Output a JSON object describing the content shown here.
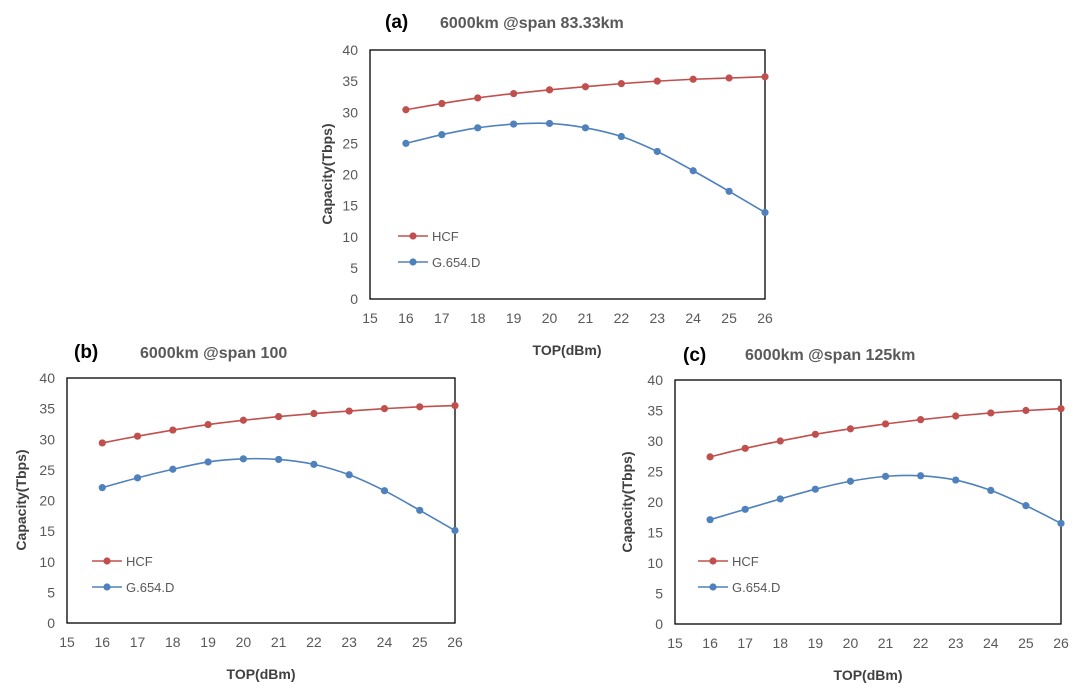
{
  "colors": {
    "hcf": "#C0504D",
    "g654": "#4F81BD",
    "frame": "#000000",
    "text": "#595959"
  },
  "chart_data": [
    {
      "type": "line",
      "panel_label": "(a)",
      "title": "6000km @span 83.33km",
      "xlabel": "TOP(dBm)",
      "ylabel": "Capacity(Tbps)",
      "xlim": [
        15,
        26
      ],
      "ylim": [
        0,
        40
      ],
      "x_ticks": [
        "15",
        "16",
        "17",
        "18",
        "19",
        "20",
        "21",
        "22",
        "23",
        "24",
        "25",
        "26"
      ],
      "y_ticks": [
        "0",
        "5",
        "10",
        "15",
        "20",
        "25",
        "30",
        "35",
        "40"
      ],
      "grid": false,
      "legend_position": "left-middle",
      "x": [
        16,
        17,
        18,
        19,
        20,
        21,
        22,
        23,
        24,
        25,
        26
      ],
      "series": [
        {
          "name": "HCF",
          "color": "#C0504D",
          "values": [
            30.4,
            31.4,
            32.3,
            33.0,
            33.6,
            34.1,
            34.6,
            35.0,
            35.3,
            35.5,
            35.7
          ]
        },
        {
          "name": "G.654.D",
          "color": "#4F81BD",
          "values": [
            25.0,
            26.4,
            27.5,
            28.1,
            28.2,
            27.5,
            26.1,
            23.7,
            20.6,
            17.3,
            13.9
          ]
        }
      ]
    },
    {
      "type": "line",
      "panel_label": "(b)",
      "title": "6000km @span 100",
      "xlabel": "TOP(dBm)",
      "ylabel": "Capacity(Tbps)",
      "xlim": [
        15,
        26
      ],
      "ylim": [
        0,
        40
      ],
      "x_ticks": [
        "15",
        "16",
        "17",
        "18",
        "19",
        "20",
        "21",
        "22",
        "23",
        "24",
        "25",
        "26"
      ],
      "y_ticks": [
        "0",
        "5",
        "10",
        "15",
        "20",
        "25",
        "30",
        "35",
        "40"
      ],
      "grid": false,
      "legend_position": "left-middle",
      "x": [
        16,
        17,
        18,
        19,
        20,
        21,
        22,
        23,
        24,
        25,
        26
      ],
      "series": [
        {
          "name": "HCF",
          "color": "#C0504D",
          "values": [
            29.4,
            30.5,
            31.5,
            32.4,
            33.1,
            33.7,
            34.2,
            34.6,
            35.0,
            35.3,
            35.5
          ]
        },
        {
          "name": "G.654.D",
          "color": "#4F81BD",
          "values": [
            22.1,
            23.7,
            25.1,
            26.3,
            26.8,
            26.7,
            25.9,
            24.2,
            21.6,
            18.4,
            15.1
          ]
        }
      ]
    },
    {
      "type": "line",
      "panel_label": "(c)",
      "title": "6000km @span 125km",
      "xlabel": "TOP(dBm)",
      "ylabel": "Capacity(Tbps)",
      "xlim": [
        15,
        26
      ],
      "ylim": [
        0,
        40
      ],
      "x_ticks": [
        "15",
        "16",
        "17",
        "18",
        "19",
        "20",
        "21",
        "22",
        "23",
        "24",
        "25",
        "26"
      ],
      "y_ticks": [
        "0",
        "5",
        "10",
        "15",
        "20",
        "25",
        "30",
        "35",
        "40"
      ],
      "grid": false,
      "legend_position": "left-middle",
      "x": [
        16,
        17,
        18,
        19,
        20,
        21,
        22,
        23,
        24,
        25,
        26
      ],
      "series": [
        {
          "name": "HCF",
          "color": "#C0504D",
          "values": [
            27.4,
            28.8,
            30.0,
            31.1,
            32.0,
            32.8,
            33.5,
            34.1,
            34.6,
            35.0,
            35.3
          ]
        },
        {
          "name": "G.654.D",
          "color": "#4F81BD",
          "values": [
            17.1,
            18.8,
            20.5,
            22.1,
            23.4,
            24.2,
            24.3,
            23.6,
            21.9,
            19.4,
            16.5
          ]
        }
      ]
    }
  ]
}
